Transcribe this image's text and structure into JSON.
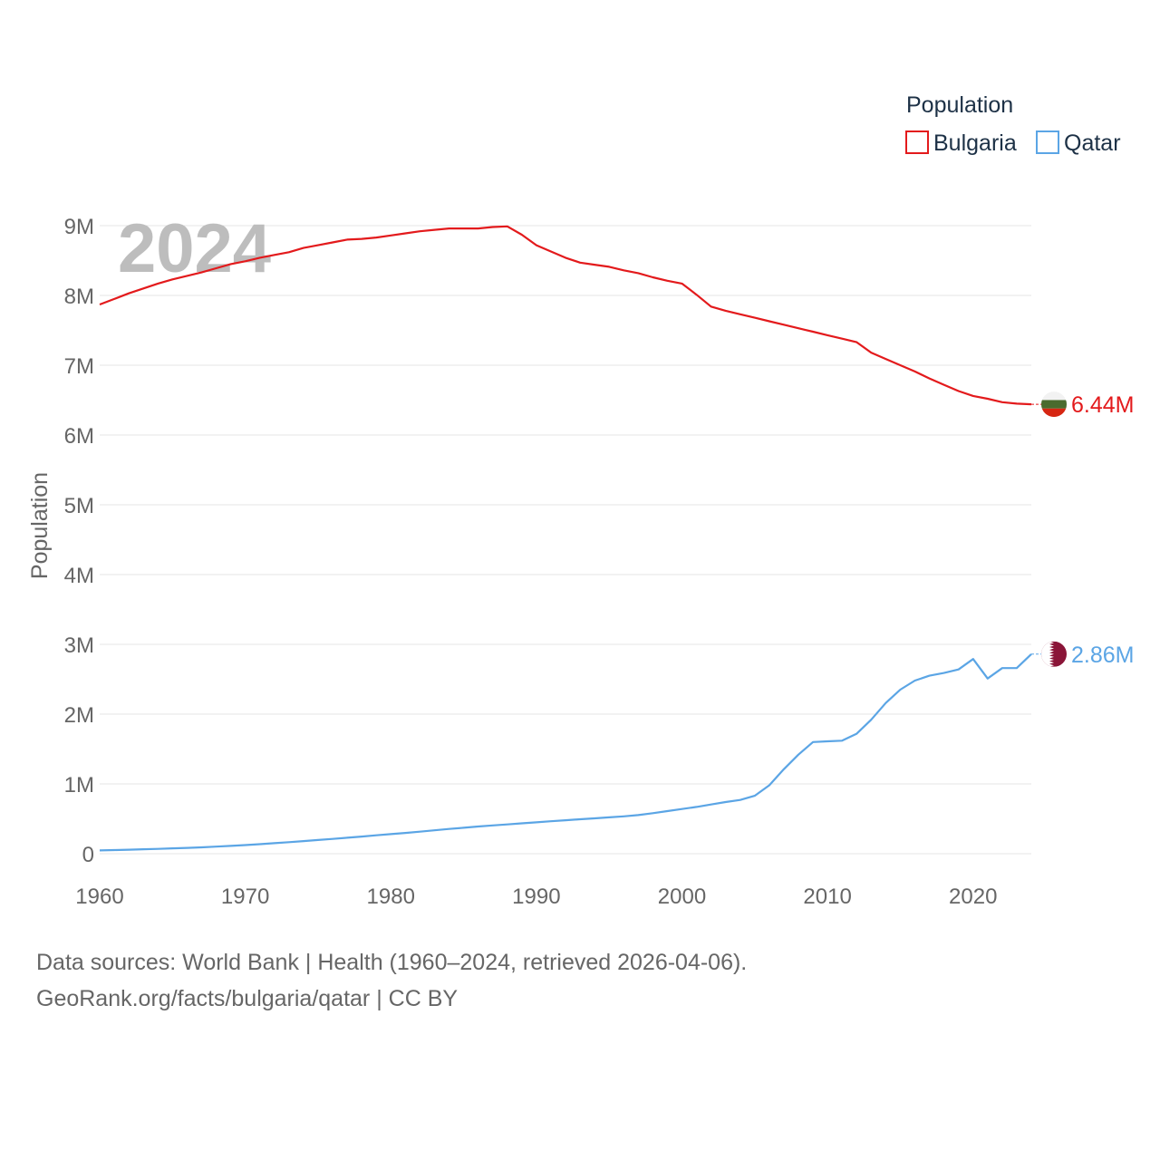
{
  "chart_data": {
    "type": "line",
    "title": "Population",
    "ylabel": "Population",
    "xlabel": "",
    "year_watermark": "2024",
    "xlim": [
      1960,
      2024
    ],
    "ylim": [
      0,
      9000000
    ],
    "x_ticks": [
      1960,
      1970,
      1980,
      1990,
      2000,
      2010,
      2020
    ],
    "x_tick_labels": [
      "1960",
      "1970",
      "1980",
      "1990",
      "2000",
      "2010",
      "2020"
    ],
    "y_ticks": [
      0,
      1000000,
      2000000,
      3000000,
      4000000,
      5000000,
      6000000,
      7000000,
      8000000,
      9000000
    ],
    "y_tick_labels": [
      "0",
      "1M",
      "2M",
      "3M",
      "4M",
      "5M",
      "6M",
      "7M",
      "8M",
      "9M"
    ],
    "grid": true,
    "legend": {
      "title": "Population",
      "placement": "top-right"
    },
    "x": [
      1960,
      1961,
      1962,
      1963,
      1964,
      1965,
      1966,
      1967,
      1968,
      1969,
      1970,
      1971,
      1972,
      1973,
      1974,
      1975,
      1976,
      1977,
      1978,
      1979,
      1980,
      1981,
      1982,
      1983,
      1984,
      1985,
      1986,
      1987,
      1988,
      1989,
      1990,
      1991,
      1992,
      1993,
      1994,
      1995,
      1996,
      1997,
      1998,
      1999,
      2000,
      2001,
      2002,
      2003,
      2004,
      2005,
      2006,
      2007,
      2008,
      2009,
      2010,
      2011,
      2012,
      2013,
      2014,
      2015,
      2016,
      2017,
      2018,
      2019,
      2020,
      2021,
      2022,
      2023,
      2024
    ],
    "series": [
      {
        "name": "Bulgaria",
        "color": "#e31a1c",
        "end_label": "6.44M",
        "flag": "bulgaria-flag",
        "values": [
          7870000,
          7950000,
          8030000,
          8100000,
          8170000,
          8230000,
          8280000,
          8330000,
          8390000,
          8450000,
          8490000,
          8540000,
          8580000,
          8620000,
          8680000,
          8720000,
          8760000,
          8800000,
          8810000,
          8830000,
          8860000,
          8890000,
          8920000,
          8940000,
          8960000,
          8960000,
          8960000,
          8980000,
          8990000,
          8870000,
          8720000,
          8630000,
          8540000,
          8470000,
          8440000,
          8410000,
          8360000,
          8320000,
          8260000,
          8210000,
          8170000,
          8010000,
          7840000,
          7780000,
          7730000,
          7680000,
          7630000,
          7580000,
          7530000,
          7480000,
          7430000,
          7380000,
          7330000,
          7180000,
          7090000,
          7000000,
          6910000,
          6810000,
          6720000,
          6630000,
          6560000,
          6520000,
          6470000,
          6450000,
          6440000
        ]
      },
      {
        "name": "Qatar",
        "color": "#5ba5e5",
        "end_label": "2.86M",
        "flag": "qatar-flag",
        "values": [
          47000,
          52000,
          57000,
          63000,
          69000,
          76000,
          83000,
          91000,
          101000,
          112000,
          123000,
          136000,
          151000,
          165000,
          180000,
          196000,
          212000,
          228000,
          245000,
          263000,
          280000,
          297000,
          316000,
          335000,
          354000,
          372000,
          389000,
          405000,
          420000,
          435000,
          450000,
          465000,
          479000,
          493000,
          507000,
          521000,
          535000,
          553000,
          580000,
          610000,
          640000,
          670000,
          705000,
          740000,
          770000,
          830000,
          980000,
          1210000,
          1420000,
          1600000,
          1610000,
          1620000,
          1720000,
          1920000,
          2160000,
          2350000,
          2480000,
          2550000,
          2590000,
          2640000,
          2790000,
          2510000,
          2660000,
          2660000,
          2860000
        ]
      }
    ]
  },
  "footer": {
    "line1": "Data sources: World Bank | Health (1960–2024, retrieved 2026-04-06).",
    "line2": "GeoRank.org/facts/bulgaria/qatar | CC BY"
  }
}
